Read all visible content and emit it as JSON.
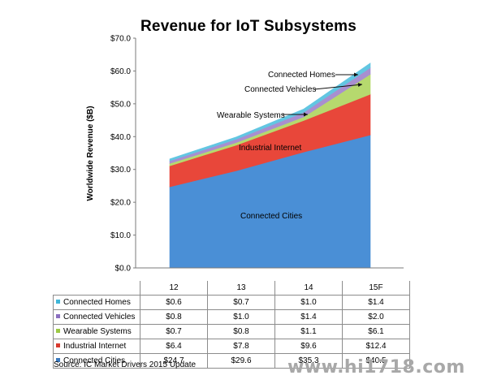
{
  "chart_data": {
    "type": "area",
    "stacked": true,
    "title": "Revenue for IoT Subsystems",
    "ylabel": "Worldwide Revenue ($B)",
    "ylim": [
      0,
      70
    ],
    "yticks": [
      "$0.0",
      "$10.0",
      "$20.0",
      "$30.0",
      "$40.0",
      "$50.0",
      "$60.0",
      "$70.0"
    ],
    "categories": [
      "12",
      "13",
      "14",
      "15F"
    ],
    "series": [
      {
        "name": "Connected Cities",
        "values": [
          24.7,
          29.6,
          35.3,
          40.5
        ],
        "display": [
          "$24.7",
          "$29.6",
          "$35.3",
          "$40.5"
        ],
        "color": "#4a8fd6",
        "swatch": "#3b7bbf"
      },
      {
        "name": "Industrial Internet",
        "values": [
          6.4,
          7.8,
          9.6,
          12.4
        ],
        "display": [
          "$6.4",
          "$7.8",
          "$9.6",
          "$12.4"
        ],
        "color": "#e8473a",
        "swatch": "#d83a2e"
      },
      {
        "name": "Wearable Systems",
        "values": [
          0.7,
          0.8,
          1.1,
          6.1
        ],
        "display": [
          "$0.7",
          "$0.8",
          "$1.1",
          "$6.1"
        ],
        "color": "#b6d96e",
        "swatch": "#9cc945"
      },
      {
        "name": "Connected Vehicles",
        "values": [
          0.8,
          1.0,
          1.4,
          2.0
        ],
        "display": [
          "$0.8",
          "$1.0",
          "$1.4",
          "$2.0"
        ],
        "color": "#a88fd0",
        "swatch": "#8b6fc0"
      },
      {
        "name": "Connected Homes",
        "values": [
          0.6,
          0.7,
          1.0,
          1.4
        ],
        "display": [
          "$0.6",
          "$0.7",
          "$1.0",
          "$1.4"
        ],
        "color": "#62c6e2",
        "swatch": "#3fb6d8"
      }
    ],
    "annotations": [
      "Connected Homes",
      "Connected Vehicles",
      "Wearable Systems",
      "Industrial Internet",
      "Connected Cities"
    ],
    "grid": false,
    "legend": "table-below"
  },
  "source": "Source:  IC Market Drivers 2015 Update",
  "watermark": "www.hi1718.com"
}
